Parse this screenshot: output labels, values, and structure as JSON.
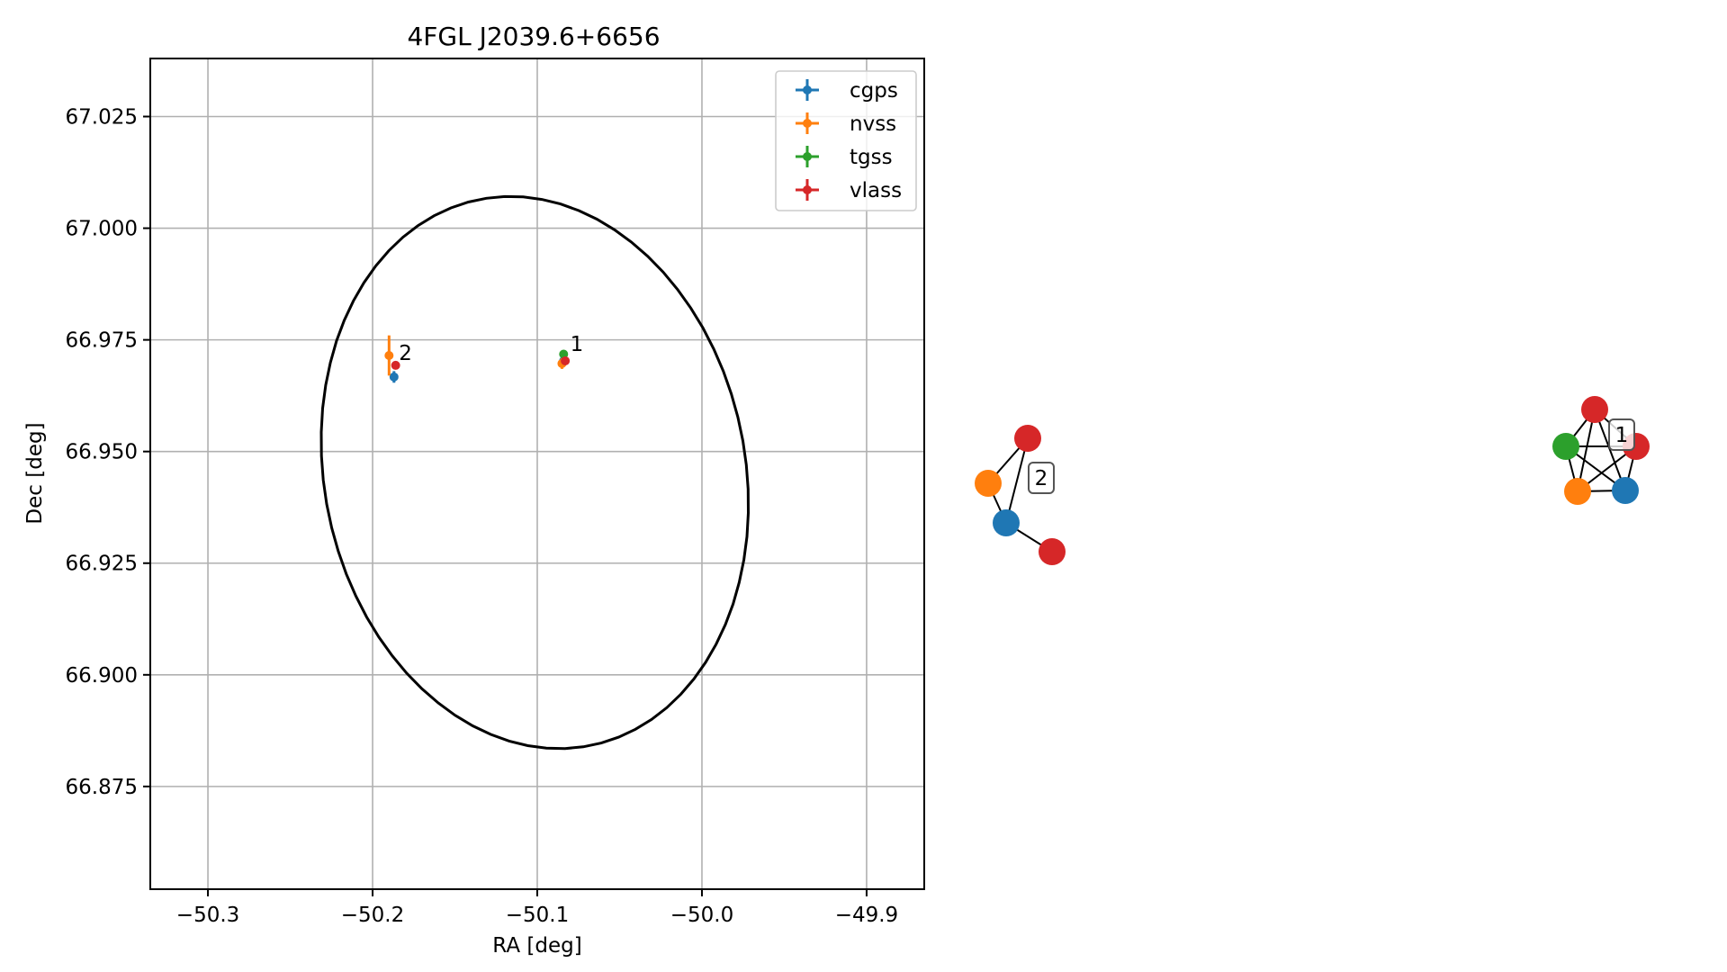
{
  "chart_data": [
    {
      "type": "scatter",
      "title": "4FGL J2039.6+6656",
      "xlabel": "RA [deg]",
      "ylabel": "Dec [deg]",
      "xlim": [
        -50.335,
        -49.865
      ],
      "ylim": [
        66.852,
        67.038
      ],
      "xticks": [
        -50.3,
        -50.2,
        -50.1,
        -50.0,
        -49.9
      ],
      "xtick_labels": [
        "−50.3",
        "−50.2",
        "−50.1",
        "−50.0",
        "−49.9"
      ],
      "yticks": [
        66.875,
        66.9,
        66.925,
        66.95,
        66.975,
        67.0,
        67.025
      ],
      "ytick_labels": [
        "66.875",
        "66.900",
        "66.925",
        "66.950",
        "66.975",
        "67.000",
        "67.025"
      ],
      "grid": true,
      "legend_position": "top-right",
      "series": [
        {
          "name": "cgps",
          "color": "#1f77b4",
          "points": [
            {
              "x": -50.187,
              "y": 66.9667,
              "xerr": 0.0005,
              "yerr": 0.0013
            },
            {
              "x": -50.084,
              "y": 66.9703,
              "xerr": 0.0004,
              "yerr": 0.0008
            }
          ]
        },
        {
          "name": "nvss",
          "color": "#ff7f0e",
          "points": [
            {
              "x": -50.19,
              "y": 66.9715,
              "xerr": 0.0008,
              "yerr": 0.0045
            },
            {
              "x": -50.085,
              "y": 66.9697,
              "xerr": 0.0005,
              "yerr": 0.0012
            }
          ]
        },
        {
          "name": "tgss",
          "color": "#2ca02c",
          "points": [
            {
              "x": -50.084,
              "y": 66.9718,
              "xerr": 0.0004,
              "yerr": 0.0004
            }
          ]
        },
        {
          "name": "vlass",
          "color": "#d62728",
          "points": [
            {
              "x": -50.186,
              "y": 66.9693,
              "xerr": 0.0002,
              "yerr": 0.0002
            },
            {
              "x": -50.083,
              "y": 66.9703,
              "xerr": 0.0002,
              "yerr": 0.0002
            }
          ]
        }
      ],
      "ellipse": {
        "center_x": -50.1015,
        "center_y": 66.9453,
        "semi_x": 0.13,
        "semi_y": 0.0613,
        "tilt_deg": -4
      },
      "annotations": [
        {
          "text": "1",
          "x": -50.08,
          "y": 66.9725
        },
        {
          "text": "2",
          "x": -50.184,
          "y": 66.9705
        }
      ]
    }
  ],
  "graphs": [
    {
      "label": "2",
      "nodes": [
        {
          "id": "a",
          "color": "#d62728"
        },
        {
          "id": "b",
          "color": "#ff7f0e"
        },
        {
          "id": "c",
          "color": "#1f77b4"
        },
        {
          "id": "d",
          "color": "#d62728"
        }
      ],
      "edges": [
        [
          "a",
          "b"
        ],
        [
          "a",
          "c"
        ],
        [
          "b",
          "c"
        ],
        [
          "c",
          "d"
        ]
      ]
    },
    {
      "label": "1",
      "nodes": [
        {
          "id": "r1",
          "color": "#d62728"
        },
        {
          "id": "g",
          "color": "#2ca02c"
        },
        {
          "id": "r2",
          "color": "#d62728"
        },
        {
          "id": "o",
          "color": "#ff7f0e"
        },
        {
          "id": "bl",
          "color": "#1f77b4"
        }
      ],
      "edges": [
        [
          "r1",
          "g"
        ],
        [
          "r1",
          "r2"
        ],
        [
          "r1",
          "o"
        ],
        [
          "r1",
          "bl"
        ],
        [
          "g",
          "r2"
        ],
        [
          "g",
          "o"
        ],
        [
          "g",
          "bl"
        ],
        [
          "r2",
          "o"
        ],
        [
          "r2",
          "bl"
        ],
        [
          "o",
          "bl"
        ]
      ]
    }
  ]
}
